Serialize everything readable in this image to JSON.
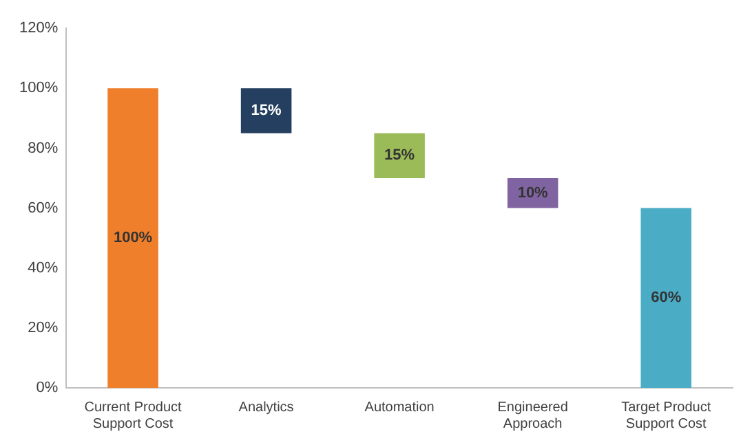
{
  "chart_data": {
    "type": "bar",
    "categories": [
      "Current Product Support Cost",
      "Analytics",
      "Automation",
      "Engineered Approach",
      "Target Product Support Cost"
    ],
    "values": [
      100,
      15,
      15,
      10,
      60
    ],
    "base": [
      0,
      85,
      70,
      60,
      0
    ],
    "colors": [
      "#f07f2c",
      "#243f60",
      "#9bbb59",
      "#8064a2",
      "#4bacc6"
    ],
    "value_labels": [
      "100%",
      "15%",
      "15%",
      "10%",
      "60%"
    ],
    "ylim": [
      0,
      120
    ],
    "yticks": [
      {
        "value": 0,
        "label": "0%"
      },
      {
        "value": 20,
        "label": "20%"
      },
      {
        "value": 40,
        "label": "40%"
      },
      {
        "value": 60,
        "label": "60%"
      },
      {
        "value": 80,
        "label": "80%"
      },
      {
        "value": 100,
        "label": "100%"
      },
      {
        "value": 120,
        "label": "120%"
      }
    ],
    "grid": false,
    "legend": false
  }
}
